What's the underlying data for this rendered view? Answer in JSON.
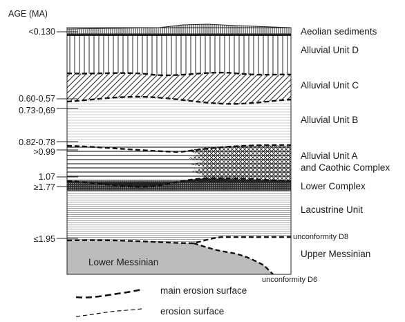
{
  "axis_title": "AGE (MA)",
  "ages": {
    "a0130": "<0.130",
    "a060": "0.60-0.57",
    "a073": "0.73-0,69",
    "a082": "0.82-0.78",
    "a099": ">0.99",
    "a107": "1.07",
    "a177": "≥1.77",
    "a195": "≤1.95"
  },
  "units": {
    "aeolian": "Aeolian sediments",
    "alluvial_d": "Alluvial Unit D",
    "alluvial_c": "Alluvial Unit C",
    "alluvial_b": "Alluvial Unit B",
    "alluvial_a_line1": "Alluvial Unit A",
    "alluvial_a_line2": "and Caothic Complex",
    "lower_complex": "Lower Complex",
    "lacustrine": "Lacustrine Unit",
    "upper_messinian": "Upper Messinian",
    "lower_messinian": "Lower Messinian"
  },
  "unconformities": {
    "d8": "unconformity D8",
    "d6": "unconformity D6"
  },
  "legend": {
    "main_erosion": "main erosion surface",
    "erosion": "erosion surface"
  }
}
